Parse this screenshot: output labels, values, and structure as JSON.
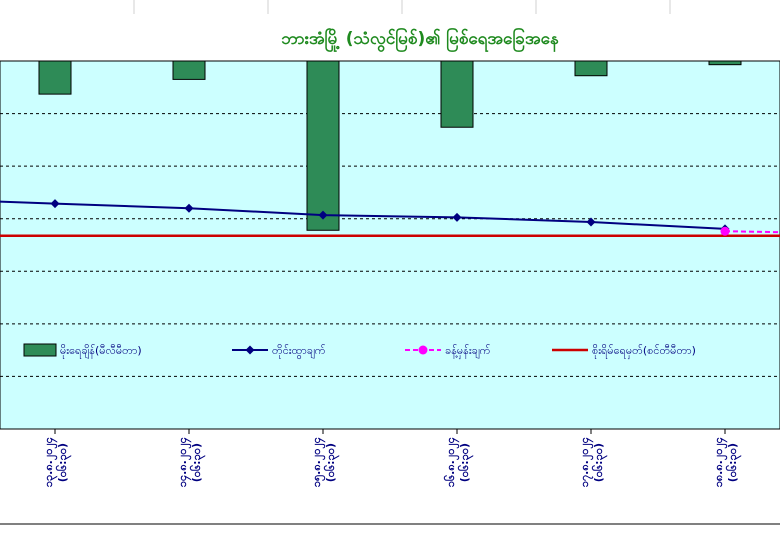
{
  "chart_data": {
    "type": "bar",
    "title": "ဘားအံမြို့ (သံလွင်မြစ်)၏ မြစ်ရေအခြေအနေ",
    "categories": [
      {
        "date": "၁၃.၈.၂၀၂၄",
        "time": "(၀၆:၃၀)"
      },
      {
        "date": "၁၄.၈.၂၀၂၄",
        "time": "(၀၆:၃၀)"
      },
      {
        "date": "၁၅.၈.၂၀၂၄",
        "time": "(၀၆:၃၀)"
      },
      {
        "date": "၁၆.၈.၂၀၂၄",
        "time": "(၀၆:၃၀)"
      },
      {
        "date": "၁၇.၈.၂၀၂၄",
        "time": "(၀၆:၃၀)"
      },
      {
        "date": "၁၈.၈.၂၀၂၄",
        "time": "(၀၆:၃၀)"
      }
    ],
    "series": [
      {
        "name": "မိုးရေချိန်(မီလီမီတာ)",
        "kind": "bar",
        "color": "#2e8b57",
        "values": [
          9,
          5,
          46,
          18,
          4,
          1
        ]
      },
      {
        "name": "တိုင်းထွာချက်",
        "kind": "line",
        "color": "#000080",
        "values": [
          6.9,
          6.8,
          6.65,
          6.6,
          6.5,
          6.35
        ]
      },
      {
        "name": "ခန့်မှန်းချက်",
        "kind": "dashed-line",
        "color": "#ff00ff",
        "values": [
          null,
          null,
          null,
          null,
          null,
          6.3
        ]
      },
      {
        "name": "စိုးရိမ်ရေမှတ်(စင်တီမီတာ)",
        "kind": "threshold",
        "color": "#cc0000",
        "value": 6.2
      }
    ],
    "ranges": {
      "rain_top": 0,
      "rain_bottom": 100,
      "level_top": 10,
      "level_bottom": 2
    },
    "grid": true,
    "legend_position": "bottom",
    "colors": {
      "plot_background": "#ccffff",
      "title": "#1f8a1f",
      "text": "#000080"
    }
  }
}
